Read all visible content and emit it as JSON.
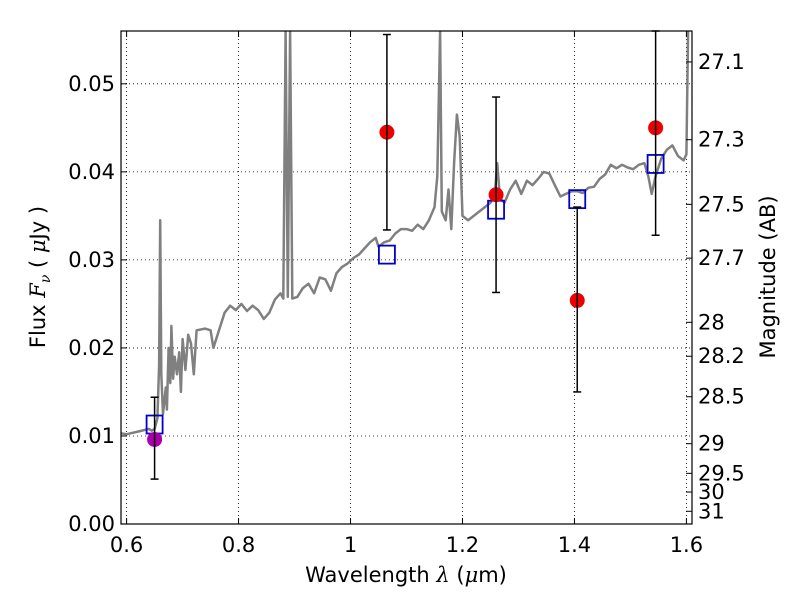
{
  "chart_data": {
    "type": "scatter",
    "title": "",
    "xlabel": "Wavelength  λ (μm)",
    "ylabel": {
      "pre": "Flux  ",
      "symbol": "F",
      "subscript": "ν",
      "mid": "  ( ",
      "mu": "μ",
      "post": "Jy )"
    },
    "ylabel_right": "Magnitude (AB)",
    "xlim": [
      0.59,
      1.61
    ],
    "ylim": [
      0.0,
      0.056
    ],
    "grid": true,
    "legend": "none",
    "x_ticks": [
      {
        "value": 0.6,
        "label": "0.6"
      },
      {
        "value": 0.8,
        "label": "0.8"
      },
      {
        "value": 1.0,
        "label": "1"
      },
      {
        "value": 1.2,
        "label": "1.2"
      },
      {
        "value": 1.4,
        "label": "1.4"
      },
      {
        "value": 1.6,
        "label": "1.6"
      }
    ],
    "y_ticks": [
      {
        "value": 0.0,
        "label": "0.00"
      },
      {
        "value": 0.01,
        "label": "0.01"
      },
      {
        "value": 0.02,
        "label": "0.02"
      },
      {
        "value": 0.03,
        "label": "0.03"
      },
      {
        "value": 0.04,
        "label": "0.04"
      },
      {
        "value": 0.05,
        "label": "0.05"
      }
    ],
    "mag_ticks": [
      {
        "value": 27.1,
        "label": "27.1"
      },
      {
        "value": 27.3,
        "label": "27.3"
      },
      {
        "value": 27.5,
        "label": "27.5"
      },
      {
        "value": 27.7,
        "label": "27.7"
      },
      {
        "value": 28.0,
        "label": "28"
      },
      {
        "value": 28.2,
        "label": "28.2"
      },
      {
        "value": 28.5,
        "label": "28.5"
      },
      {
        "value": 29.0,
        "label": "29"
      },
      {
        "value": 29.5,
        "label": "29.5"
      },
      {
        "value": 30.0,
        "label": "30"
      },
      {
        "value": 31.0,
        "label": "31"
      }
    ],
    "series": [
      {
        "kind": "line",
        "color": "#808080",
        "points": [
          [
            0.59,
            0.0103
          ],
          [
            0.6,
            0.0102
          ],
          [
            0.62,
            0.0105
          ],
          [
            0.64,
            0.0108
          ],
          [
            0.645,
            0.0106
          ],
          [
            0.65,
            0.0108
          ],
          [
            0.655,
            0.012
          ],
          [
            0.658,
            0.018
          ],
          [
            0.66,
            0.0345
          ],
          [
            0.662,
            0.017
          ],
          [
            0.665,
            0.0125
          ],
          [
            0.67,
            0.0155
          ],
          [
            0.672,
            0.013
          ],
          [
            0.675,
            0.02
          ],
          [
            0.678,
            0.016
          ],
          [
            0.68,
            0.0225
          ],
          [
            0.683,
            0.0165
          ],
          [
            0.686,
            0.019
          ],
          [
            0.69,
            0.017
          ],
          [
            0.694,
            0.0195
          ],
          [
            0.697,
            0.015
          ],
          [
            0.7,
            0.021
          ],
          [
            0.705,
            0.0175
          ],
          [
            0.71,
            0.0215
          ],
          [
            0.715,
            0.0205
          ],
          [
            0.72,
            0.017
          ],
          [
            0.725,
            0.022
          ],
          [
            0.74,
            0.0222
          ],
          [
            0.75,
            0.022
          ],
          [
            0.755,
            0.02
          ],
          [
            0.765,
            0.022
          ],
          [
            0.775,
            0.024
          ],
          [
            0.785,
            0.0248
          ],
          [
            0.795,
            0.0243
          ],
          [
            0.805,
            0.025
          ],
          [
            0.815,
            0.0242
          ],
          [
            0.825,
            0.0248
          ],
          [
            0.835,
            0.0243
          ],
          [
            0.845,
            0.0233
          ],
          [
            0.855,
            0.024
          ],
          [
            0.865,
            0.0255
          ],
          [
            0.875,
            0.0262
          ],
          [
            0.88,
            0.0256
          ],
          [
            0.884,
            0.056
          ],
          [
            0.888,
            0.0258
          ],
          [
            0.892,
            0.056
          ],
          [
            0.896,
            0.0256
          ],
          [
            0.905,
            0.0258
          ],
          [
            0.915,
            0.0268
          ],
          [
            0.925,
            0.0273
          ],
          [
            0.935,
            0.0262
          ],
          [
            0.945,
            0.028
          ],
          [
            0.955,
            0.0278
          ],
          [
            0.965,
            0.0265
          ],
          [
            0.975,
            0.0285
          ],
          [
            0.985,
            0.0292
          ],
          [
            0.995,
            0.0296
          ],
          [
            1.005,
            0.0302
          ],
          [
            1.015,
            0.0306
          ],
          [
            1.025,
            0.0313
          ],
          [
            1.035,
            0.032
          ],
          [
            1.045,
            0.0325
          ],
          [
            1.05,
            0.0315
          ],
          [
            1.06,
            0.032
          ],
          [
            1.07,
            0.0322
          ],
          [
            1.08,
            0.033
          ],
          [
            1.09,
            0.0335
          ],
          [
            1.1,
            0.0335
          ],
          [
            1.11,
            0.0333
          ],
          [
            1.12,
            0.034
          ],
          [
            1.13,
            0.0335
          ],
          [
            1.14,
            0.0345
          ],
          [
            1.15,
            0.036
          ],
          [
            1.155,
            0.0395
          ],
          [
            1.16,
            0.056
          ],
          [
            1.163,
            0.0355
          ],
          [
            1.17,
            0.0345
          ],
          [
            1.175,
            0.038
          ],
          [
            1.18,
            0.0335
          ],
          [
            1.185,
            0.041
          ],
          [
            1.19,
            0.0465
          ],
          [
            1.195,
            0.044
          ],
          [
            1.2,
            0.035
          ],
          [
            1.21,
            0.0345
          ],
          [
            1.22,
            0.035
          ],
          [
            1.23,
            0.0355
          ],
          [
            1.24,
            0.036
          ],
          [
            1.25,
            0.0365
          ],
          [
            1.258,
            0.0375
          ],
          [
            1.262,
            0.041
          ],
          [
            1.267,
            0.037
          ],
          [
            1.275,
            0.0365
          ],
          [
            1.285,
            0.038
          ],
          [
            1.295,
            0.039
          ],
          [
            1.305,
            0.0375
          ],
          [
            1.315,
            0.039
          ],
          [
            1.325,
            0.0385
          ],
          [
            1.335,
            0.0392
          ],
          [
            1.345,
            0.04
          ],
          [
            1.355,
            0.0398
          ],
          [
            1.365,
            0.0385
          ],
          [
            1.375,
            0.0372
          ],
          [
            1.385,
            0.0375
          ],
          [
            1.395,
            0.0378
          ],
          [
            1.405,
            0.0378
          ],
          [
            1.415,
            0.0376
          ],
          [
            1.425,
            0.0382
          ],
          [
            1.435,
            0.0383
          ],
          [
            1.445,
            0.0392
          ],
          [
            1.455,
            0.0397
          ],
          [
            1.465,
            0.0408
          ],
          [
            1.475,
            0.0404
          ],
          [
            1.485,
            0.0408
          ],
          [
            1.495,
            0.0405
          ],
          [
            1.505,
            0.0403
          ],
          [
            1.515,
            0.0408
          ],
          [
            1.525,
            0.041
          ],
          [
            1.532,
            0.0395
          ],
          [
            1.538,
            0.0375
          ],
          [
            1.545,
            0.0395
          ],
          [
            1.555,
            0.0415
          ],
          [
            1.565,
            0.0425
          ],
          [
            1.575,
            0.043
          ],
          [
            1.585,
            0.0418
          ],
          [
            1.595,
            0.0413
          ],
          [
            1.6,
            0.042
          ],
          [
            1.603,
            0.056
          ]
        ]
      },
      {
        "kind": "markers",
        "marker": "square-open",
        "color": "#0000cc",
        "points": [
          [
            0.65,
            0.0113
          ],
          [
            1.065,
            0.0306
          ],
          [
            1.26,
            0.0357
          ],
          [
            1.405,
            0.0369
          ],
          [
            1.545,
            0.0409
          ]
        ]
      },
      {
        "kind": "markers",
        "marker": "circle-filled",
        "color": "#ee0000",
        "points": [
          [
            1.065,
            0.0445
          ],
          [
            1.26,
            0.0374
          ],
          [
            1.405,
            0.0254
          ],
          [
            1.545,
            0.045
          ]
        ]
      },
      {
        "kind": "markers",
        "marker": "circle-filled",
        "color": "#aa00aa",
        "points": [
          [
            0.65,
            0.0096
          ]
        ]
      },
      {
        "kind": "errorbars",
        "color": "#000000",
        "bars": [
          {
            "x": 0.65,
            "lo": 0.0051,
            "hi": 0.0144
          },
          {
            "x": 1.065,
            "lo": 0.0334,
            "hi": 0.0556
          },
          {
            "x": 1.26,
            "lo": 0.0263,
            "hi": 0.0485
          },
          {
            "x": 1.405,
            "lo": 0.015,
            "hi": 0.036
          },
          {
            "x": 1.545,
            "lo": 0.0328,
            "hi": 0.056
          }
        ]
      }
    ]
  }
}
